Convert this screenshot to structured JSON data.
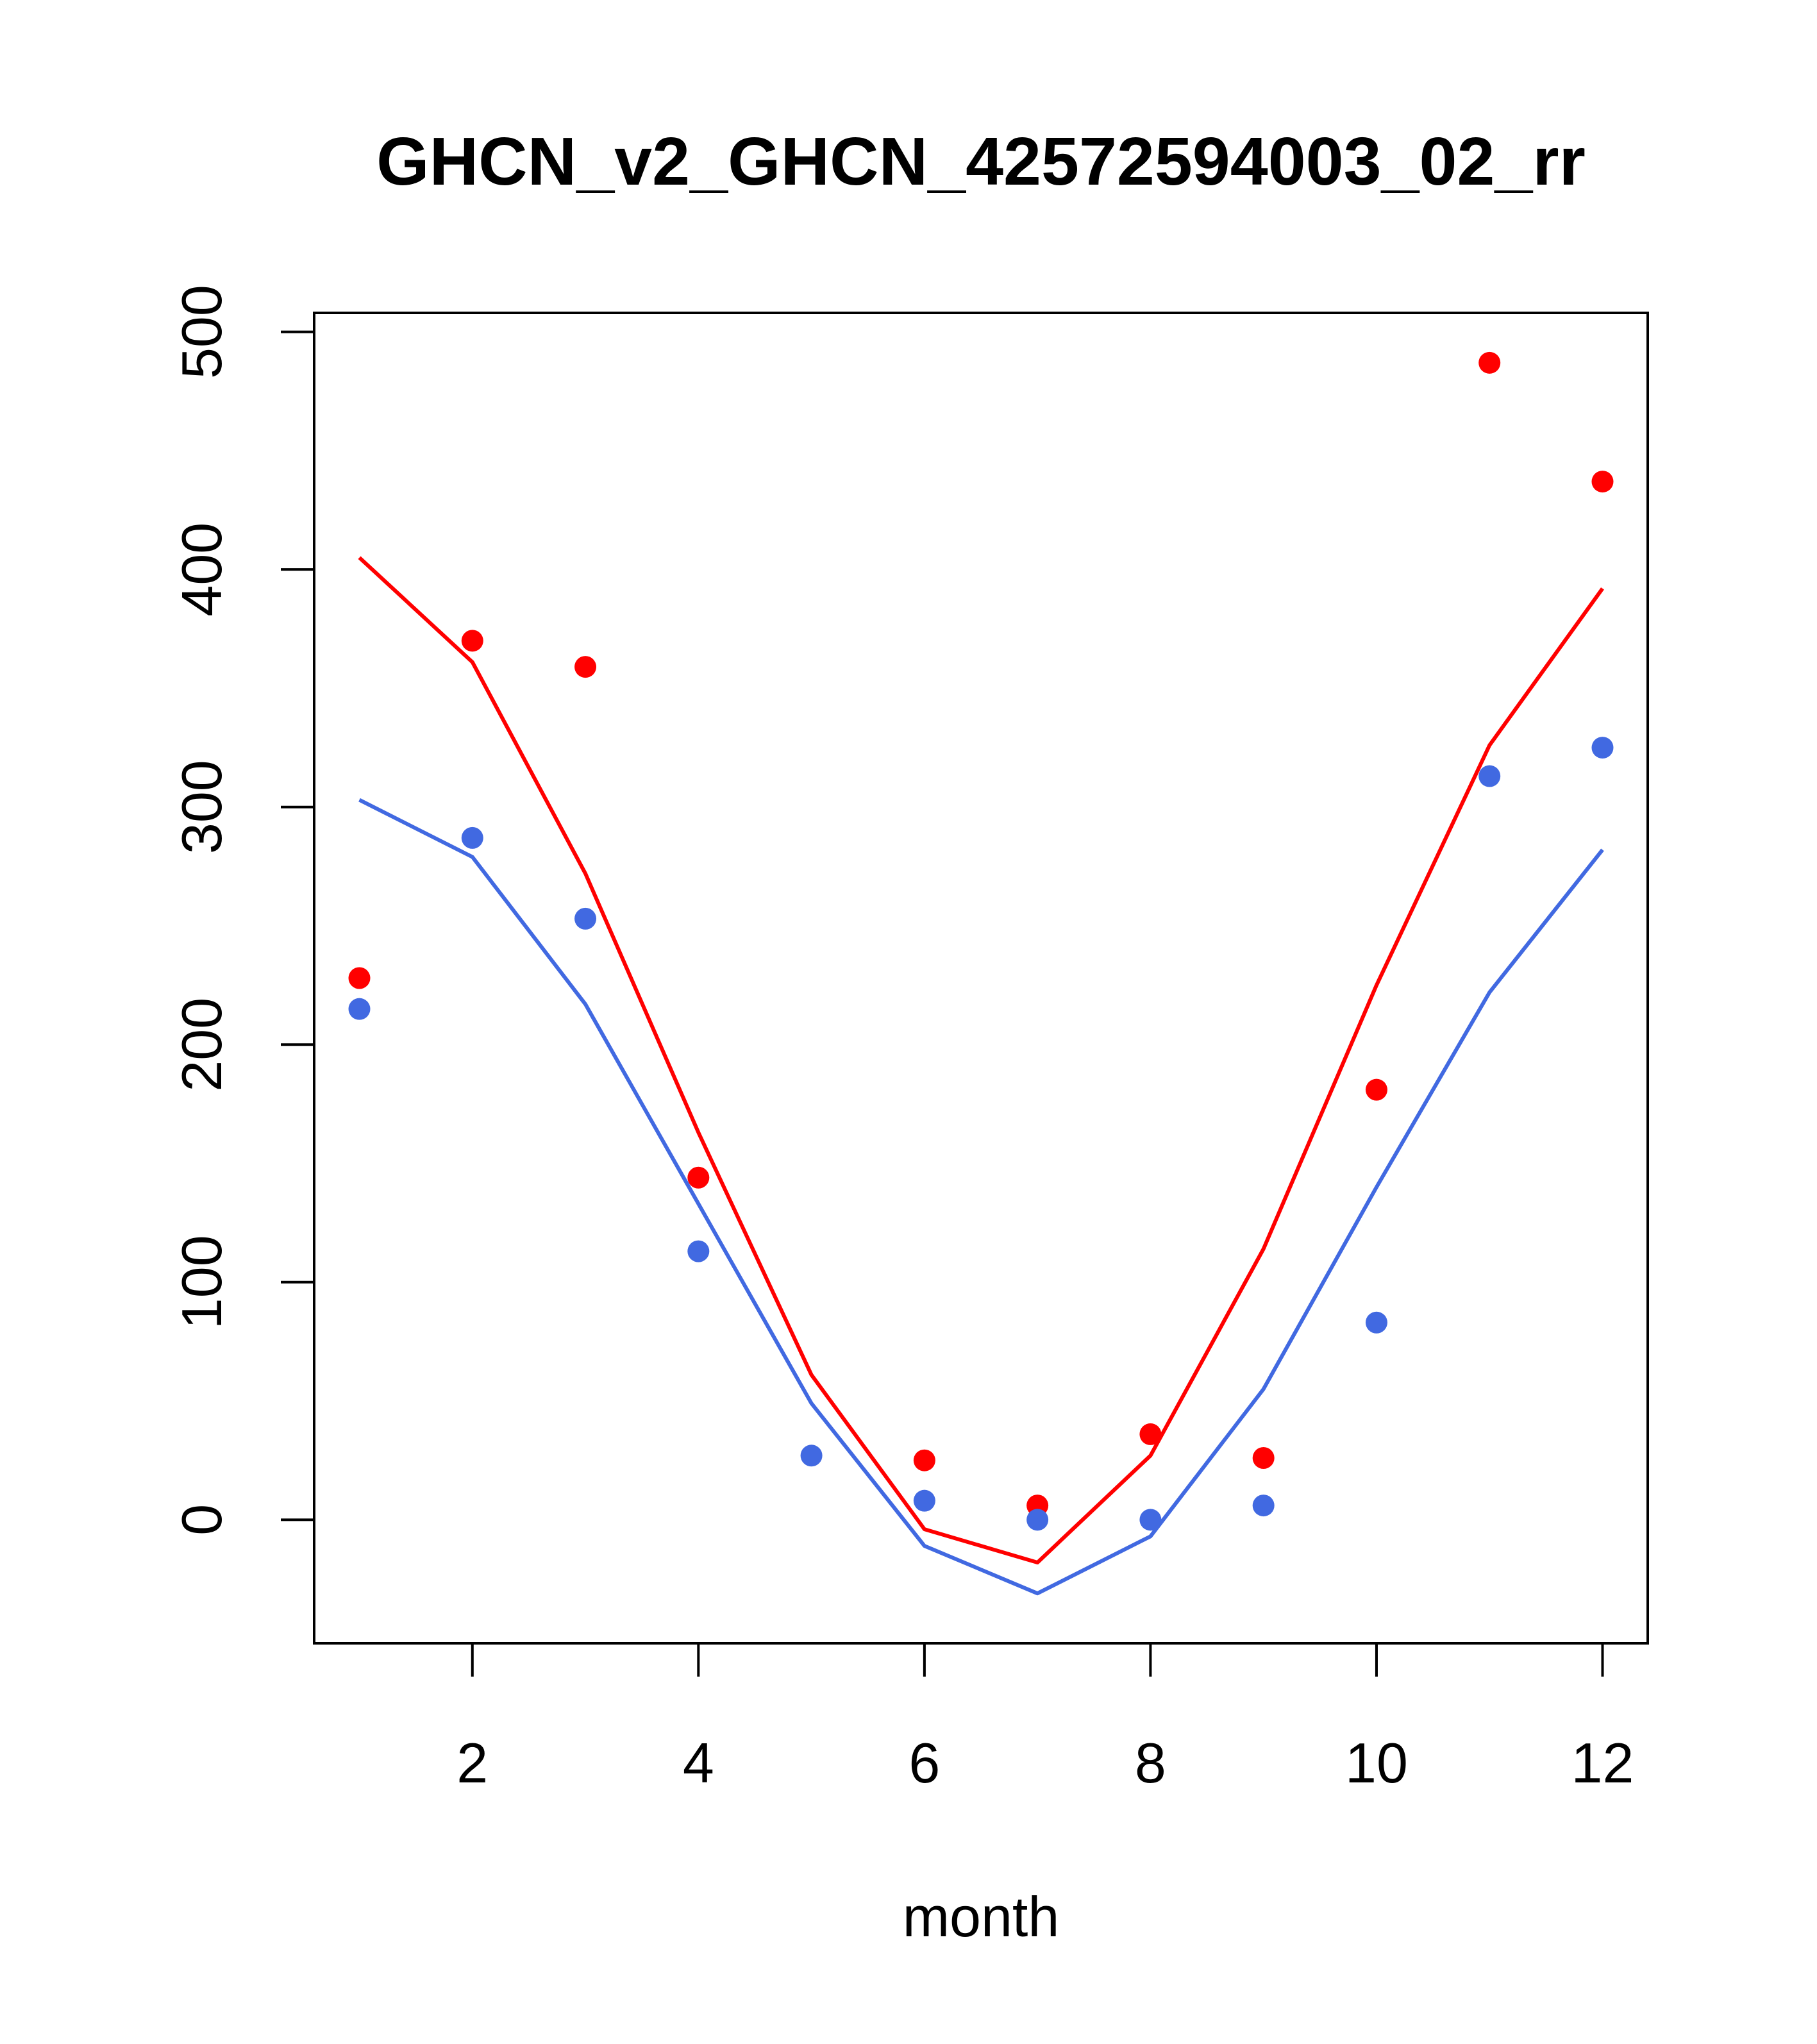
{
  "chart_data": {
    "type": "scatter",
    "title": "GHCN_v2_GHCN_42572594003_02_rr",
    "xlabel": "month",
    "ylabel": "",
    "xlim": [
      0.6,
      12.4
    ],
    "ylim": [
      -52,
      508
    ],
    "x_ticks": [
      "2",
      "4",
      "6",
      "8",
      "10",
      "12"
    ],
    "y_ticks": [
      "0",
      "100",
      "200",
      "300",
      "400",
      "500"
    ],
    "grid": false,
    "x": [
      1,
      2,
      3,
      4,
      5,
      6,
      7,
      8,
      9,
      10,
      11,
      12
    ],
    "series": [
      {
        "kind": "points",
        "color": "#ff0000",
        "values": [
          228,
          370,
          359,
          144,
          null,
          25,
          6,
          36,
          26,
          181,
          487,
          437
        ]
      },
      {
        "kind": "points",
        "color": "#4169e1",
        "values": [
          215,
          287,
          253,
          113,
          27,
          8,
          0,
          0,
          6,
          83,
          313,
          325
        ]
      },
      {
        "kind": "line",
        "color": "#ff0000",
        "values": [
          405,
          361,
          272,
          163,
          61,
          -4,
          -18,
          27,
          114,
          225,
          326,
          392
        ]
      },
      {
        "kind": "line",
        "color": "#4169e1",
        "values": [
          303,
          279,
          217,
          133,
          49,
          -11,
          -31,
          -7,
          55,
          140,
          222,
          282
        ]
      }
    ]
  }
}
